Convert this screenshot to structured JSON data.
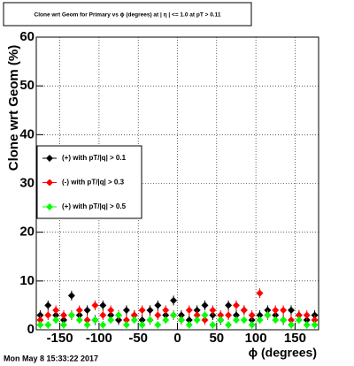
{
  "chart_data": {
    "type": "scatter",
    "title": "Clone wrt Geom for Primary vs ϕ (degrees) at | η | <= 1.0 at pT > 0.11",
    "x_label": "ϕ (degrees)",
    "y_label": "Clone wrt Geom (%)",
    "timestamp": "Mon May  8 15:33:22 2017",
    "x": [
      -175,
      -165,
      -155,
      -145,
      -135,
      -125,
      -115,
      -105,
      -95,
      -85,
      -75,
      -65,
      -55,
      -45,
      -35,
      -25,
      -15,
      -5,
      5,
      15,
      25,
      35,
      45,
      55,
      65,
      75,
      85,
      95,
      105,
      115,
      125,
      135,
      145,
      155,
      165,
      175
    ],
    "series": [
      {
        "name": "(+) with pT/|q| > 0.1",
        "color": "#000000",
        "error": 1,
        "values": [
          3,
          5,
          3,
          2,
          7,
          3,
          4,
          2,
          5,
          3,
          2,
          4,
          3,
          2,
          4,
          5,
          3,
          6,
          3,
          2,
          4,
          5,
          3,
          2,
          5,
          3,
          4,
          2,
          3,
          4,
          3,
          2,
          4,
          3,
          2,
          3
        ]
      },
      {
        "name": "(-) with pT/|q| > 0.3",
        "color": "#ff0000",
        "error": 1,
        "values": [
          2,
          3,
          4,
          3,
          3,
          4,
          2,
          5,
          3,
          4,
          3,
          2,
          3,
          4,
          2,
          3,
          4,
          3,
          2,
          4,
          3,
          2,
          4,
          3,
          3,
          5,
          4,
          3,
          7.5,
          3,
          4,
          4,
          2,
          3,
          3,
          2
        ]
      },
      {
        "name": "(+) with pT/|q| > 0.5",
        "color": "#00ff00",
        "error": 0.8,
        "values": [
          1,
          1,
          2,
          1,
          3,
          2,
          1,
          2,
          1,
          2,
          3,
          1,
          2,
          1,
          2,
          1,
          2,
          3,
          2,
          1,
          2,
          3,
          1,
          2,
          1,
          2,
          2,
          1,
          2,
          3,
          2,
          2,
          1,
          2,
          1,
          1
        ]
      }
    ],
    "xlim": [
      -180,
      180
    ],
    "ylim": [
      0,
      60
    ],
    "xticks": [
      -150,
      -100,
      -50,
      0,
      50,
      100,
      150
    ],
    "yticks": [
      0,
      10,
      20,
      30,
      40,
      50,
      60
    ],
    "grid": true,
    "legend": "upper-left"
  }
}
